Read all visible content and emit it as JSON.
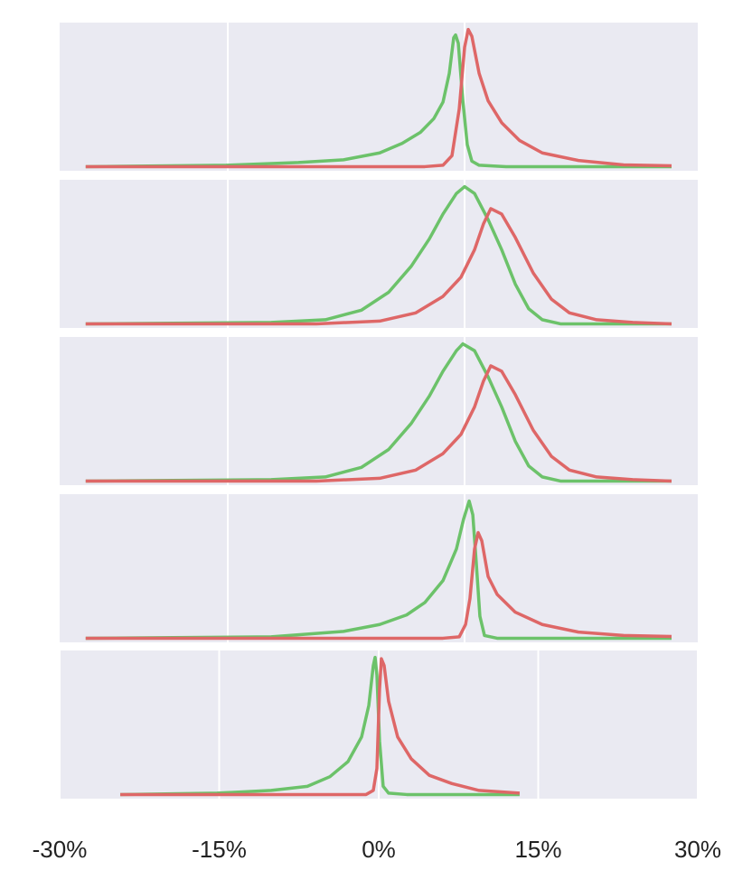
{
  "chart_data": [
    {
      "type": "line",
      "xlim": [
        -25.65,
        14.77
      ],
      "xticks": [
        -15,
        0
      ],
      "ylim": [
        -0.03,
        1.05
      ],
      "grid": true,
      "series": [
        {
          "color": "#6cc26a",
          "x": [
            -24.0,
            -15.11,
            -10.53,
            -7.67,
            -5.38,
            -3.95,
            -2.8,
            -1.95,
            -1.37,
            -0.97,
            -0.69,
            -0.57,
            -0.4,
            -0.11,
            0.17,
            0.46,
            0.92,
            2.63,
            13.11
          ],
          "values": [
            0,
            0.01,
            0.03,
            0.05,
            0.1,
            0.17,
            0.25,
            0.35,
            0.47,
            0.68,
            0.94,
            0.96,
            0.9,
            0.48,
            0.16,
            0.04,
            0.01,
            0,
            0
          ]
        },
        {
          "color": "#de6767",
          "x": [
            -24.0,
            -2.52,
            -1.37,
            -0.8,
            -0.34,
            0,
            0.23,
            0.46,
            0.92,
            1.49,
            2.35,
            3.49,
            4.92,
            7.21,
            10.07,
            13.11
          ],
          "values": [
            0,
            0,
            0.01,
            0.08,
            0.42,
            0.87,
            1.0,
            0.95,
            0.68,
            0.48,
            0.32,
            0.19,
            0.1,
            0.045,
            0.013,
            0.006
          ]
        }
      ]
    },
    {
      "type": "line",
      "xlim": [
        -25.65,
        14.77
      ],
      "xticks": [
        -15,
        0
      ],
      "ylim": [
        -0.03,
        1.05
      ],
      "grid": true,
      "series": [
        {
          "color": "#6cc26a",
          "x": [
            -24.0,
            -12.25,
            -8.82,
            -6.53,
            -4.81,
            -3.38,
            -2.23,
            -1.37,
            -0.52,
            0,
            0.63,
            1.49,
            2.35,
            3.21,
            4.06,
            4.92,
            6.07,
            13.11
          ],
          "values": [
            0,
            0.01,
            0.03,
            0.1,
            0.23,
            0.42,
            0.62,
            0.8,
            0.95,
            1.0,
            0.95,
            0.76,
            0.54,
            0.29,
            0.11,
            0.03,
            0,
            0
          ]
        },
        {
          "color": "#de6767",
          "x": [
            -24.0,
            -9.39,
            -5.38,
            -3.09,
            -1.37,
            -0.23,
            0.63,
            1.2,
            1.66,
            2.35,
            3.21,
            4.35,
            5.5,
            6.64,
            8.36,
            10.65,
            13.11
          ],
          "values": [
            0,
            0,
            0.02,
            0.08,
            0.2,
            0.34,
            0.54,
            0.73,
            0.84,
            0.8,
            0.63,
            0.37,
            0.18,
            0.08,
            0.03,
            0.01,
            0
          ]
        }
      ]
    },
    {
      "type": "line",
      "xlim": [
        -25.65,
        14.77
      ],
      "xticks": [
        -15,
        0
      ],
      "ylim": [
        -0.03,
        1.05
      ],
      "grid": true,
      "series": [
        {
          "color": "#6cc26a",
          "x": [
            -24.0,
            -12.25,
            -8.82,
            -6.53,
            -4.81,
            -3.38,
            -2.23,
            -1.37,
            -0.52,
            -0.11,
            0.63,
            1.49,
            2.35,
            3.21,
            4.06,
            4.92,
            6.07,
            13.11
          ],
          "values": [
            0,
            0.01,
            0.03,
            0.1,
            0.23,
            0.42,
            0.62,
            0.8,
            0.95,
            1.0,
            0.95,
            0.76,
            0.54,
            0.29,
            0.11,
            0.03,
            0,
            0
          ]
        },
        {
          "color": "#de6767",
          "x": [
            -24.0,
            -9.39,
            -5.38,
            -3.09,
            -1.37,
            -0.23,
            0.63,
            1.2,
            1.66,
            2.35,
            3.21,
            4.35,
            5.5,
            6.64,
            8.36,
            10.65,
            13.11
          ],
          "values": [
            0,
            0,
            0.02,
            0.08,
            0.2,
            0.34,
            0.54,
            0.73,
            0.84,
            0.8,
            0.63,
            0.37,
            0.18,
            0.08,
            0.03,
            0.01,
            0
          ]
        }
      ]
    },
    {
      "type": "line",
      "xlim": [
        -25.65,
        14.77
      ],
      "xticks": [
        -15,
        0
      ],
      "ylim": [
        -0.03,
        1.05
      ],
      "grid": true,
      "series": [
        {
          "color": "#6cc26a",
          "x": [
            -24.0,
            -12.25,
            -7.67,
            -5.38,
            -3.67,
            -2.52,
            -1.37,
            -0.52,
            -0.06,
            0.29,
            0.52,
            0.74,
            0.97,
            1.26,
            2.06,
            13.11
          ],
          "values": [
            0,
            0.01,
            0.05,
            0.1,
            0.17,
            0.26,
            0.42,
            0.65,
            0.87,
            1.0,
            0.9,
            0.55,
            0.16,
            0.02,
            0,
            0
          ]
        },
        {
          "color": "#de6767",
          "x": [
            -24.0,
            -1.37,
            -0.34,
            0.06,
            0.34,
            0.63,
            0.86,
            1.09,
            1.49,
            2.06,
            3.21,
            4.92,
            7.21,
            10.07,
            13.11
          ],
          "values": [
            0,
            0,
            0.01,
            0.1,
            0.29,
            0.65,
            0.77,
            0.71,
            0.45,
            0.32,
            0.19,
            0.1,
            0.045,
            0.02,
            0.013
          ]
        }
      ]
    },
    {
      "type": "line",
      "xlim": [
        -30,
        30
      ],
      "ylim": [
        -0.03,
        1.05
      ],
      "grid": true,
      "xticks": [
        {
          "value": -30,
          "label": "-30%"
        },
        {
          "value": -15,
          "label": "-15%"
        },
        {
          "value": 0,
          "label": "0%"
        },
        {
          "value": 15,
          "label": "15%"
        },
        {
          "value": 30,
          "label": "30%"
        }
      ],
      "series": [
        {
          "color": "#6cc26a",
          "x": [
            -24.3,
            -15.21,
            -10.11,
            -6.71,
            -4.59,
            -2.89,
            -1.61,
            -0.93,
            -0.51,
            -0.34,
            -0.17,
            0.08,
            0.42,
            0.93,
            2.63,
            13.25
          ],
          "values": [
            0,
            0.01,
            0.03,
            0.06,
            0.13,
            0.24,
            0.42,
            0.65,
            0.94,
            1.0,
            0.87,
            0.39,
            0.06,
            0.01,
            0,
            0
          ]
        },
        {
          "color": "#de6767",
          "x": [
            -24.3,
            -1.19,
            -0.51,
            -0.17,
            0.08,
            0.25,
            0.51,
            0.93,
            1.78,
            3.06,
            4.76,
            6.88,
            9.43,
            13.25
          ],
          "values": [
            0,
            0,
            0.03,
            0.19,
            0.77,
            0.99,
            0.94,
            0.68,
            0.42,
            0.26,
            0.14,
            0.08,
            0.03,
            0.01
          ]
        }
      ]
    }
  ]
}
